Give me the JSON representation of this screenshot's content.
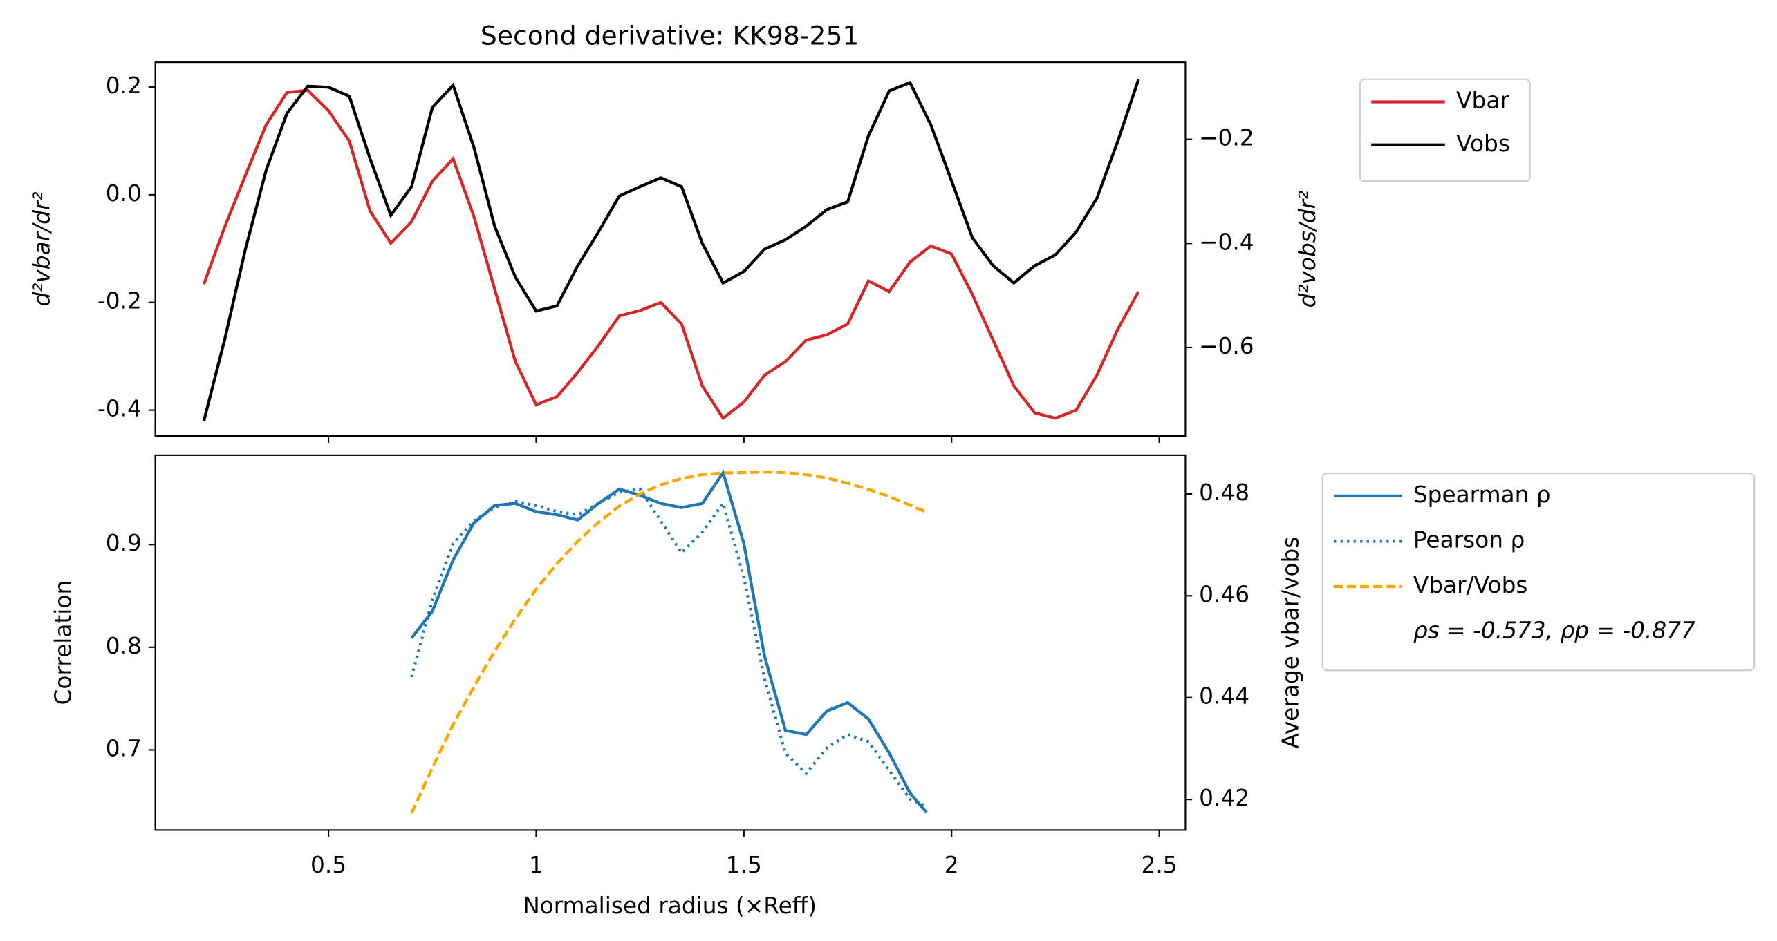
{
  "chart_data": [
    {
      "type": "line",
      "title": "Second derivative: KK98-251",
      "ylabel": "d²vbar/dr²",
      "y2label": "d²vobs/dr²",
      "ycolor": "#d62728",
      "y2color": "#000000",
      "xlim": [
        0.083,
        2.563
      ],
      "xticks": [
        0.5,
        1.0,
        1.5,
        2.0,
        2.5
      ],
      "show_xtick_labels": false,
      "ylim": [
        -0.448,
        0.246
      ],
      "yticks": [
        -0.4,
        -0.2,
        0.0,
        0.2
      ],
      "y2lim": [
        -0.77,
        -0.052
      ],
      "y2ticks": [
        -0.6,
        -0.4,
        -0.2
      ],
      "legend": "outside upper right",
      "x": [
        0.2,
        0.25,
        0.3,
        0.35,
        0.4,
        0.45,
        0.5,
        0.55,
        0.6,
        0.65,
        0.7,
        0.75,
        0.8,
        0.85,
        0.9,
        0.95,
        1.0,
        1.05,
        1.1,
        1.15,
        1.2,
        1.25,
        1.3,
        1.35,
        1.4,
        1.45,
        1.5,
        1.55,
        1.6,
        1.65,
        1.7,
        1.75,
        1.8,
        1.85,
        1.9,
        1.95,
        2.0,
        2.05,
        2.1,
        2.15,
        2.2,
        2.25,
        2.3,
        2.35,
        2.4,
        2.45
      ],
      "series": [
        {
          "name": "Vbar",
          "color": "#d62728",
          "dash": "solid",
          "axis": "y",
          "values": [
            -0.166,
            -0.06,
            0.036,
            0.13,
            0.19,
            0.194,
            0.156,
            0.1,
            -0.03,
            -0.09,
            -0.05,
            0.025,
            0.067,
            -0.04,
            -0.175,
            -0.31,
            -0.39,
            -0.375,
            -0.33,
            -0.28,
            -0.225,
            -0.215,
            -0.2,
            -0.24,
            -0.355,
            -0.415,
            -0.385,
            -0.335,
            -0.31,
            -0.27,
            -0.26,
            -0.24,
            -0.16,
            -0.18,
            -0.125,
            -0.095,
            -0.11,
            -0.185,
            -0.27,
            -0.355,
            -0.405,
            -0.415,
            -0.4,
            -0.335,
            -0.25,
            -0.18
          ]
        },
        {
          "name": "Vobs",
          "color": "#000000",
          "dash": "solid",
          "axis": "y2",
          "values": [
            -0.741,
            -0.585,
            -0.411,
            -0.259,
            -0.15,
            -0.098,
            -0.1,
            -0.117,
            -0.237,
            -0.346,
            -0.291,
            -0.139,
            -0.096,
            -0.215,
            -0.367,
            -0.465,
            -0.53,
            -0.52,
            -0.443,
            -0.378,
            -0.309,
            -0.291,
            -0.274,
            -0.291,
            -0.4,
            -0.476,
            -0.454,
            -0.411,
            -0.393,
            -0.367,
            -0.335,
            -0.32,
            -0.193,
            -0.107,
            -0.091,
            -0.172,
            -0.28,
            -0.389,
            -0.443,
            -0.476,
            -0.443,
            -0.422,
            -0.378,
            -0.313,
            -0.204,
            -0.085
          ]
        }
      ]
    },
    {
      "type": "line",
      "xlabel": "Normalised radius (×Reff)",
      "ylabel": "Correlation",
      "y2label": "Average vbar/vobs",
      "ycolor": "#1f77b4",
      "y2color": "#ffa500",
      "xlim": [
        0.083,
        2.563
      ],
      "xticks": [
        0.5,
        1.0,
        1.5,
        2.0,
        2.5
      ],
      "show_xtick_labels": true,
      "ylim": [
        0.622,
        0.987
      ],
      "yticks": [
        0.7,
        0.8,
        0.9
      ],
      "y2lim": [
        0.414,
        0.4876
      ],
      "y2ticks": [
        0.42,
        0.44,
        0.46,
        0.48
      ],
      "legend": "outside upper right",
      "legend_note": "ρs = -0.573, ρp = -0.877",
      "x": [
        0.7,
        0.75,
        0.8,
        0.85,
        0.9,
        0.95,
        1.0,
        1.05,
        1.1,
        1.15,
        1.2,
        1.25,
        1.3,
        1.35,
        1.4,
        1.45,
        1.5,
        1.55,
        1.6,
        1.65,
        1.7,
        1.75,
        1.8,
        1.85,
        1.9,
        1.94
      ],
      "series": [
        {
          "name": "Spearman ρ",
          "color": "#1f77b4",
          "dash": "solid",
          "axis": "y",
          "values": [
            0.809,
            0.835,
            0.885,
            0.921,
            0.938,
            0.94,
            0.932,
            0.929,
            0.924,
            0.94,
            0.954,
            0.948,
            0.94,
            0.936,
            0.94,
            0.97,
            0.901,
            0.791,
            0.719,
            0.715,
            0.738,
            0.746,
            0.73,
            0.697,
            0.658,
            0.639
          ]
        },
        {
          "name": "Pearson ρ",
          "color": "#1f77b4",
          "dash": "dotted",
          "axis": "y",
          "values": [
            0.771,
            0.846,
            0.901,
            0.923,
            0.936,
            0.942,
            0.938,
            0.932,
            0.929,
            0.94,
            0.951,
            0.954,
            0.923,
            0.892,
            0.912,
            0.94,
            0.868,
            0.769,
            0.697,
            0.677,
            0.702,
            0.715,
            0.708,
            0.68,
            0.652,
            0.645
          ]
        },
        {
          "name": "Vbar/Vobs",
          "color": "#ffa500",
          "dash": "dashed",
          "axis": "y2",
          "values": [
            0.4173,
            0.4262,
            0.4347,
            0.4421,
            0.4491,
            0.4555,
            0.4613,
            0.4663,
            0.4707,
            0.4744,
            0.4776,
            0.48,
            0.4818,
            0.483,
            0.4838,
            0.4841,
            0.4842,
            0.4843,
            0.4842,
            0.4838,
            0.4831,
            0.4821,
            0.4809,
            0.4795,
            0.4778,
            0.4764
          ]
        }
      ]
    }
  ]
}
